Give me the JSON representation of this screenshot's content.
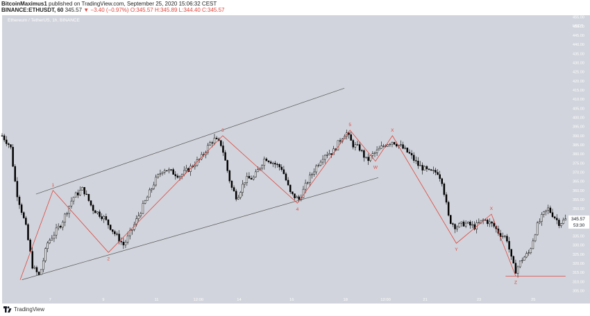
{
  "header": {
    "author": "BitcoinMaximus1",
    "published_text": "published on TradingView.com, September 25, 2020 15:06:32 CEST",
    "symbol": "BINANCE:ETHUSDT, 60",
    "last": "345.57",
    "change": "▼ −3.40 (−0.97%)",
    "ohlc": "O:345.57 H:345.89 L:344.40 C:345.57"
  },
  "chart_title": "Ethereum / TetherUS, 1h, BINANCE",
  "footer": {
    "brand": "TradingView"
  },
  "colors": {
    "plot_bg": "#d1d4dc",
    "candle": "#000000",
    "wave": "#e0443a",
    "channel": "#555555",
    "price_tag": "#ffffff"
  },
  "chart_data": {
    "type": "candlestick",
    "y_unit": "USDT",
    "ylim": [
      298,
      456
    ],
    "y_ticks": [
      305,
      310,
      315,
      320,
      325,
      330,
      335,
      340,
      345,
      350,
      355,
      360,
      365,
      370,
      375,
      380,
      385,
      390,
      395,
      400,
      405,
      410,
      415,
      420,
      425,
      430,
      435,
      440,
      445,
      450,
      455
    ],
    "x_ticks": [
      "7",
      "9",
      "11",
      "12:00",
      "14",
      "16",
      "18",
      "12:00",
      "21",
      "23",
      "25"
    ],
    "last_price_label": "345.57",
    "countdown_label": "53:30",
    "price_path": [
      [
        0,
        390
      ],
      [
        15,
        384
      ],
      [
        25,
        360
      ],
      [
        42,
        340
      ],
      [
        54,
        318
      ],
      [
        66,
        313
      ],
      [
        80,
        331
      ],
      [
        105,
        342
      ],
      [
        125,
        356
      ],
      [
        143,
        361
      ],
      [
        160,
        350
      ],
      [
        180,
        345
      ],
      [
        200,
        336
      ],
      [
        215,
        330
      ],
      [
        232,
        340
      ],
      [
        250,
        352
      ],
      [
        270,
        365
      ],
      [
        285,
        372
      ],
      [
        300,
        370
      ],
      [
        315,
        368
      ],
      [
        335,
        373
      ],
      [
        352,
        378
      ],
      [
        368,
        386
      ],
      [
        375,
        388
      ],
      [
        388,
        385
      ],
      [
        405,
        362
      ],
      [
        415,
        356
      ],
      [
        430,
        366
      ],
      [
        445,
        367
      ],
      [
        465,
        378
      ],
      [
        480,
        375
      ],
      [
        495,
        372
      ],
      [
        510,
        358
      ],
      [
        525,
        355
      ],
      [
        540,
        365
      ],
      [
        555,
        373
      ],
      [
        570,
        380
      ],
      [
        585,
        381
      ],
      [
        598,
        388
      ],
      [
        608,
        392
      ],
      [
        620,
        385
      ],
      [
        632,
        383
      ],
      [
        645,
        376
      ],
      [
        653,
        379
      ],
      [
        665,
        382
      ],
      [
        676,
        385
      ],
      [
        690,
        387
      ],
      [
        705,
        384
      ],
      [
        720,
        380
      ],
      [
        735,
        374
      ],
      [
        755,
        370
      ],
      [
        770,
        370
      ],
      [
        778,
        365
      ],
      [
        790,
        344
      ],
      [
        802,
        340
      ],
      [
        818,
        342
      ],
      [
        835,
        340
      ],
      [
        852,
        344
      ],
      [
        868,
        341
      ],
      [
        880,
        336
      ],
      [
        892,
        334
      ],
      [
        902,
        320
      ],
      [
        908,
        316
      ],
      [
        918,
        322
      ],
      [
        932,
        326
      ],
      [
        945,
        340
      ],
      [
        955,
        346
      ],
      [
        965,
        350
      ],
      [
        975,
        346
      ],
      [
        985,
        342
      ],
      [
        996,
        344
      ]
    ],
    "waves": [
      {
        "label": "1",
        "at": [
          90,
          360
        ]
      },
      {
        "label": "2",
        "at": [
          188,
          326
        ]
      },
      {
        "label": "3",
        "at": [
          390,
          390
        ]
      },
      {
        "label": "4",
        "at": [
          522,
          353
        ]
      },
      {
        "label": "5",
        "at": [
          615,
          393
        ]
      },
      {
        "label": "W",
        "at": [
          660,
          376
        ]
      },
      {
        "label": "X",
        "at": [
          690,
          390
        ]
      },
      {
        "label": "Y",
        "at": [
          803,
          331
        ]
      },
      {
        "label": "X",
        "at": [
          865,
          347
        ]
      },
      {
        "label": "Z",
        "at": [
          908,
          313
        ]
      }
    ],
    "channel_upper": [
      [
        60,
        358
      ],
      [
        605,
        416
      ]
    ],
    "channel_lower": [
      [
        35,
        311
      ],
      [
        665,
        367
      ]
    ],
    "support_line": [
      [
        890,
        313
      ],
      [
        996,
        313
      ]
    ]
  }
}
